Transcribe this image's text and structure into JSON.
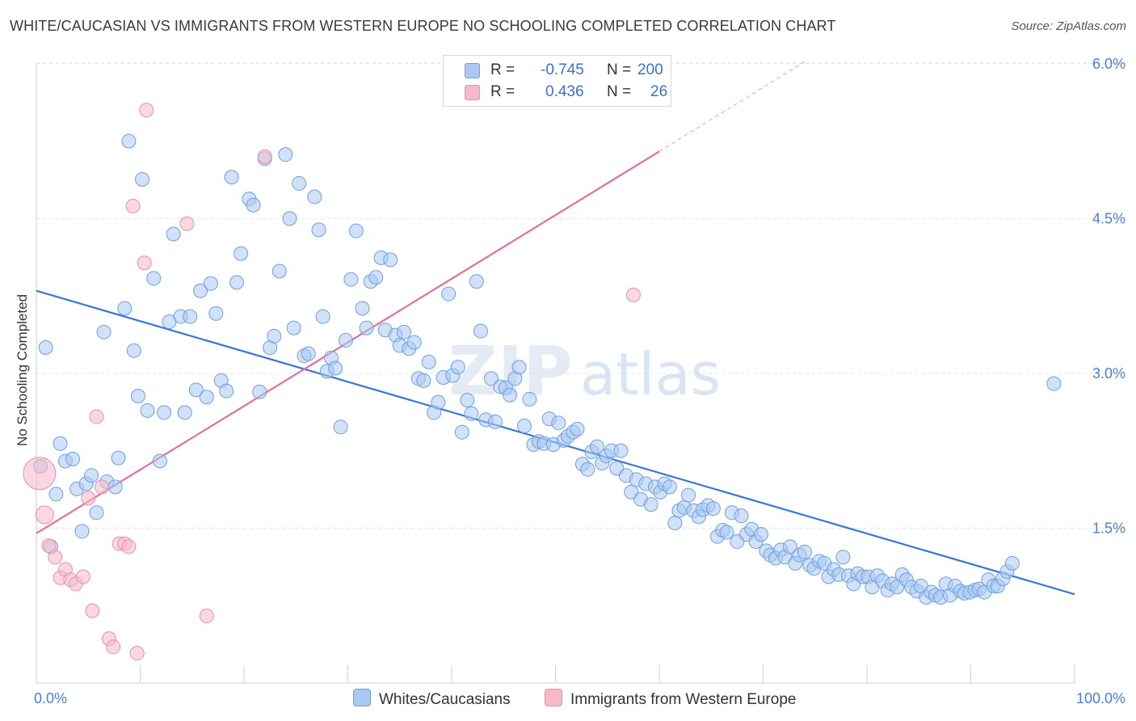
{
  "title": "WHITE/CAUCASIAN VS IMMIGRANTS FROM WESTERN EUROPE NO SCHOOLING COMPLETED CORRELATION CHART",
  "source": "Source: ZipAtlas.com",
  "watermark": {
    "zip": "ZIP",
    "atlas": "atlas"
  },
  "legend": {
    "r_label": "R =",
    "n_label": "N =",
    "series1": {
      "r": "-0.745",
      "n": "200"
    },
    "series2": {
      "r": "0.436",
      "n": "26"
    }
  },
  "colors": {
    "blue_fill": "#a9c8f2",
    "blue_stroke": "#6f9fe0",
    "blue_line": "#3a78d4",
    "pink_fill": "#f7b8c9",
    "pink_stroke": "#ea8fab",
    "pink_line": "#e3709a",
    "tick_text": "#4a7fd4",
    "grid": "#e3e3e3"
  },
  "chart_data": {
    "type": "scatter",
    "title": "WHITE/CAUCASIAN VS IMMIGRANTS FROM WESTERN EUROPE NO SCHOOLING COMPLETED CORRELATION CHART",
    "xlabel": "",
    "ylabel": "No Schooling Completed",
    "xlim": [
      0,
      100
    ],
    "ylim": [
      0,
      6.3
    ],
    "x_tick_labels": [
      "0.0%",
      "100.0%"
    ],
    "y_ticks": [
      1.5,
      3.0,
      4.5,
      6.0
    ],
    "y_tick_labels": [
      "1.5%",
      "3.0%",
      "4.5%",
      "6.0%"
    ],
    "grid": true,
    "legend_position": "top-center",
    "series": [
      {
        "name": "Whites/Caucasians",
        "r": -0.745,
        "n": 200,
        "trend": {
          "x": [
            0,
            100
          ],
          "y": [
            3.8,
            0.86
          ]
        },
        "points": [
          [
            0.4,
            2.1
          ],
          [
            0.9,
            3.25
          ],
          [
            1.4,
            1.32
          ],
          [
            1.9,
            1.83
          ],
          [
            2.3,
            2.32
          ],
          [
            2.8,
            2.15
          ],
          [
            3.5,
            2.17
          ],
          [
            3.9,
            1.88
          ],
          [
            4.4,
            1.47
          ],
          [
            4.8,
            1.93
          ],
          [
            5.3,
            2.01
          ],
          [
            5.8,
            1.65
          ],
          [
            6.5,
            3.4
          ],
          [
            6.8,
            1.95
          ],
          [
            7.6,
            1.9
          ],
          [
            7.9,
            2.18
          ],
          [
            8.5,
            3.63
          ],
          [
            8.9,
            5.25
          ],
          [
            9.4,
            3.22
          ],
          [
            9.8,
            2.78
          ],
          [
            10.2,
            4.88
          ],
          [
            10.7,
            2.64
          ],
          [
            11.3,
            3.92
          ],
          [
            11.9,
            2.15
          ],
          [
            12.3,
            2.62
          ],
          [
            12.8,
            3.5
          ],
          [
            13.2,
            4.35
          ],
          [
            13.9,
            3.55
          ],
          [
            14.3,
            2.62
          ],
          [
            14.8,
            3.55
          ],
          [
            15.4,
            2.84
          ],
          [
            15.8,
            3.8
          ],
          [
            16.4,
            2.77
          ],
          [
            16.8,
            3.87
          ],
          [
            17.3,
            3.58
          ],
          [
            17.8,
            2.93
          ],
          [
            18.3,
            2.83
          ],
          [
            18.8,
            4.9
          ],
          [
            19.3,
            3.88
          ],
          [
            19.7,
            4.16
          ],
          [
            20.5,
            4.69
          ],
          [
            20.9,
            4.63
          ],
          [
            21.5,
            2.82
          ],
          [
            22.0,
            5.08
          ],
          [
            22.5,
            3.25
          ],
          [
            22.9,
            3.36
          ],
          [
            23.4,
            3.99
          ],
          [
            24.0,
            5.12
          ],
          [
            24.4,
            4.5
          ],
          [
            24.8,
            3.44
          ],
          [
            25.3,
            4.84
          ],
          [
            25.8,
            3.17
          ],
          [
            26.2,
            3.19
          ],
          [
            26.8,
            4.71
          ],
          [
            27.2,
            4.39
          ],
          [
            27.6,
            3.55
          ],
          [
            28.0,
            3.02
          ],
          [
            28.4,
            3.15
          ],
          [
            28.8,
            3.05
          ],
          [
            29.3,
            2.48
          ],
          [
            29.8,
            3.32
          ],
          [
            30.3,
            3.91
          ],
          [
            30.8,
            4.38
          ],
          [
            31.4,
            3.63
          ],
          [
            31.8,
            3.44
          ],
          [
            32.2,
            3.89
          ],
          [
            32.7,
            3.93
          ],
          [
            33.2,
            4.12
          ],
          [
            33.6,
            3.42
          ],
          [
            34.1,
            4.1
          ],
          [
            34.6,
            3.37
          ],
          [
            35.0,
            3.27
          ],
          [
            35.4,
            3.4
          ],
          [
            35.9,
            3.24
          ],
          [
            36.4,
            3.3
          ],
          [
            36.8,
            2.95
          ],
          [
            37.3,
            2.93
          ],
          [
            37.8,
            3.11
          ],
          [
            38.3,
            2.62
          ],
          [
            38.7,
            2.72
          ],
          [
            39.2,
            2.96
          ],
          [
            39.7,
            3.77
          ],
          [
            40.1,
            2.98
          ],
          [
            40.6,
            3.06
          ],
          [
            41.0,
            2.43
          ],
          [
            41.5,
            2.74
          ],
          [
            41.9,
            2.61
          ],
          [
            42.4,
            3.89
          ],
          [
            42.8,
            3.41
          ],
          [
            43.3,
            2.55
          ],
          [
            43.8,
            2.95
          ],
          [
            44.2,
            2.53
          ],
          [
            44.7,
            2.87
          ],
          [
            45.2,
            2.86
          ],
          [
            45.6,
            2.79
          ],
          [
            46.1,
            2.95
          ],
          [
            46.5,
            3.06
          ],
          [
            47.0,
            2.49
          ],
          [
            47.5,
            2.75
          ],
          [
            47.9,
            2.31
          ],
          [
            48.4,
            2.34
          ],
          [
            48.9,
            2.32
          ],
          [
            49.4,
            2.56
          ],
          [
            49.8,
            2.31
          ],
          [
            50.3,
            2.52
          ],
          [
            50.8,
            2.35
          ],
          [
            51.2,
            2.39
          ],
          [
            51.7,
            2.43
          ],
          [
            52.1,
            2.46
          ],
          [
            52.6,
            2.12
          ],
          [
            53.1,
            2.07
          ],
          [
            53.5,
            2.24
          ],
          [
            54.0,
            2.29
          ],
          [
            54.5,
            2.13
          ],
          [
            54.9,
            2.2
          ],
          [
            55.4,
            2.25
          ],
          [
            55.9,
            2.08
          ],
          [
            56.3,
            2.25
          ],
          [
            56.8,
            2.01
          ],
          [
            57.3,
            1.85
          ],
          [
            57.8,
            1.97
          ],
          [
            58.2,
            1.78
          ],
          [
            58.7,
            1.93
          ],
          [
            59.2,
            1.73
          ],
          [
            59.6,
            1.9
          ],
          [
            60.1,
            1.85
          ],
          [
            60.5,
            1.93
          ],
          [
            61.0,
            1.9
          ],
          [
            61.5,
            1.55
          ],
          [
            61.9,
            1.67
          ],
          [
            62.4,
            1.7
          ],
          [
            62.8,
            1.82
          ],
          [
            63.3,
            1.67
          ],
          [
            63.8,
            1.61
          ],
          [
            64.2,
            1.68
          ],
          [
            64.7,
            1.72
          ],
          [
            65.2,
            1.69
          ],
          [
            65.6,
            1.42
          ],
          [
            66.1,
            1.48
          ],
          [
            66.5,
            1.46
          ],
          [
            67.0,
            1.65
          ],
          [
            67.5,
            1.37
          ],
          [
            67.9,
            1.62
          ],
          [
            68.4,
            1.44
          ],
          [
            68.9,
            1.49
          ],
          [
            69.3,
            1.37
          ],
          [
            69.8,
            1.44
          ],
          [
            70.3,
            1.28
          ],
          [
            70.7,
            1.24
          ],
          [
            71.2,
            1.21
          ],
          [
            71.7,
            1.29
          ],
          [
            72.1,
            1.22
          ],
          [
            72.6,
            1.32
          ],
          [
            73.1,
            1.16
          ],
          [
            73.5,
            1.24
          ],
          [
            74.0,
            1.27
          ],
          [
            74.5,
            1.14
          ],
          [
            74.9,
            1.11
          ],
          [
            75.4,
            1.18
          ],
          [
            75.9,
            1.16
          ],
          [
            76.3,
            1.03
          ],
          [
            76.8,
            1.1
          ],
          [
            77.3,
            1.05
          ],
          [
            77.7,
            1.22
          ],
          [
            78.2,
            1.04
          ],
          [
            78.7,
            0.96
          ],
          [
            79.1,
            1.06
          ],
          [
            79.6,
            1.03
          ],
          [
            80.1,
            1.03
          ],
          [
            80.5,
            0.93
          ],
          [
            81.0,
            1.04
          ],
          [
            81.5,
            0.99
          ],
          [
            82.0,
            0.9
          ],
          [
            82.4,
            0.96
          ],
          [
            82.9,
            0.93
          ],
          [
            83.4,
            1.05
          ],
          [
            83.8,
            1.0
          ],
          [
            84.3,
            0.93
          ],
          [
            84.8,
            0.89
          ],
          [
            85.2,
            0.94
          ],
          [
            85.7,
            0.83
          ],
          [
            86.2,
            0.88
          ],
          [
            86.6,
            0.85
          ],
          [
            87.1,
            0.83
          ],
          [
            87.6,
            0.96
          ],
          [
            88.0,
            0.85
          ],
          [
            88.5,
            0.94
          ],
          [
            89.0,
            0.89
          ],
          [
            89.4,
            0.87
          ],
          [
            89.9,
            0.88
          ],
          [
            90.4,
            0.9
          ],
          [
            90.8,
            0.91
          ],
          [
            91.3,
            0.88
          ],
          [
            91.7,
            1.0
          ],
          [
            92.2,
            0.94
          ],
          [
            92.6,
            0.94
          ],
          [
            93.1,
            1.01
          ],
          [
            93.5,
            1.08
          ],
          [
            94.0,
            1.16
          ],
          [
            98.0,
            2.9
          ]
        ]
      },
      {
        "name": "Immigrants from Western Europe",
        "r": 0.436,
        "n": 26,
        "trend": {
          "x": [
            0,
            60
          ],
          "y": [
            1.45,
            5.15
          ]
        },
        "trend_extended": {
          "x": [
            60,
            74
          ],
          "y": [
            5.15,
            6.02
          ]
        },
        "points": [
          [
            0.3,
            2.03
          ],
          [
            0.8,
            1.63
          ],
          [
            1.2,
            1.33
          ],
          [
            1.8,
            1.22
          ],
          [
            2.3,
            1.02
          ],
          [
            2.8,
            1.1
          ],
          [
            3.3,
            1.0
          ],
          [
            3.8,
            0.96
          ],
          [
            4.5,
            1.03
          ],
          [
            5.0,
            1.79
          ],
          [
            5.4,
            0.7
          ],
          [
            5.8,
            2.58
          ],
          [
            6.3,
            1.9
          ],
          [
            7.0,
            0.43
          ],
          [
            7.4,
            0.35
          ],
          [
            8.0,
            1.35
          ],
          [
            8.5,
            1.35
          ],
          [
            8.9,
            1.32
          ],
          [
            9.3,
            4.62
          ],
          [
            9.7,
            0.29
          ],
          [
            10.4,
            4.07
          ],
          [
            10.6,
            5.55
          ],
          [
            14.5,
            4.45
          ],
          [
            16.4,
            0.65
          ],
          [
            22.0,
            5.1
          ],
          [
            57.5,
            3.76
          ]
        ]
      }
    ]
  }
}
